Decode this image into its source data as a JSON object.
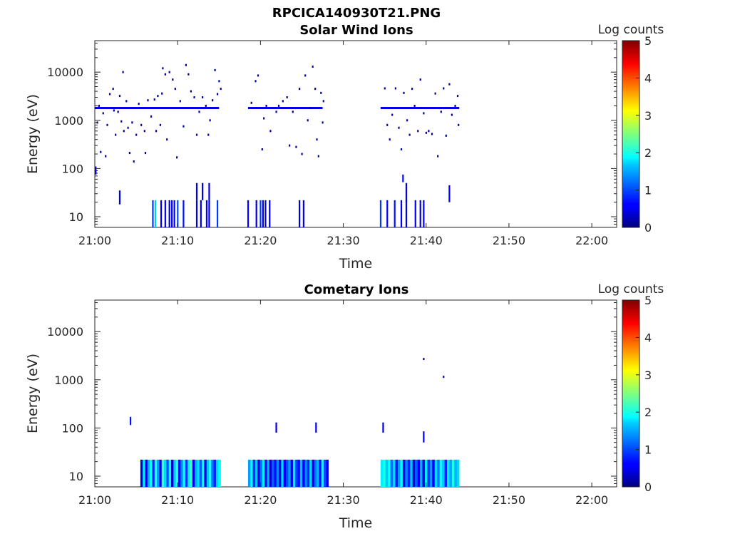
{
  "figure": {
    "title": "RPCICA140930T21.PNG"
  },
  "colorbar": {
    "label": "Log counts",
    "ticks": [
      "0",
      "1",
      "2",
      "3",
      "4",
      "5"
    ],
    "range": [
      0,
      5
    ],
    "colormap": "jet"
  },
  "chart_data": [
    {
      "type": "heatmap",
      "title": "Solar Wind Ions",
      "xlabel": "Time",
      "ylabel": "Energy (eV)",
      "x_range": [
        "21:00",
        "22:03"
      ],
      "y_scale": "log",
      "y_range": [
        6,
        45000
      ],
      "x_ticks": [
        "21:00",
        "21:10",
        "21:20",
        "21:30",
        "21:40",
        "21:50",
        "22:00"
      ],
      "y_ticks": [
        "10",
        "100",
        "1000",
        "10000"
      ],
      "colorbar_label": "Log counts",
      "color_range": [
        0,
        5
      ],
      "bars": [
        {
          "t": "21:07",
          "level": 0.9
        },
        {
          "t": "21:07.3",
          "level": 1.6
        },
        {
          "t": "21:08",
          "level": 0.5
        },
        {
          "t": "21:08.5",
          "level": 0.6
        },
        {
          "t": "21:09",
          "level": 0.4
        },
        {
          "t": "21:09.3",
          "level": 0.5
        },
        {
          "t": "21:09.6",
          "level": 0.6
        },
        {
          "t": "21:10",
          "level": 1.0
        },
        {
          "t": "21:10.7",
          "level": 0.7
        },
        {
          "t": "21:12.3",
          "level": 0.5
        },
        {
          "t": "21:12.8",
          "level": 0.4
        },
        {
          "t": "21:13.5",
          "level": 0.6
        },
        {
          "t": "21:13.8",
          "level": 0.4
        },
        {
          "t": "21:14.8",
          "level": 0.9
        },
        {
          "t": "21:18.5",
          "level": 0.6
        },
        {
          "t": "21:19.5",
          "level": 0.5
        },
        {
          "t": "21:20",
          "level": 0.9
        },
        {
          "t": "21:20.3",
          "level": 0.5
        },
        {
          "t": "21:20.6",
          "level": 0.4
        },
        {
          "t": "21:21.1",
          "level": 0.6
        },
        {
          "t": "21:24.7",
          "level": 0.5
        },
        {
          "t": "21:25.2",
          "level": 0.6
        },
        {
          "t": "21:34.5",
          "level": 0.9
        },
        {
          "t": "21:35.3",
          "level": 0.6
        },
        {
          "t": "21:36.2",
          "level": 0.7
        },
        {
          "t": "21:37",
          "level": 0.6
        },
        {
          "t": "21:37.6",
          "level": 0.5
        },
        {
          "t": "21:38.7",
          "level": 0.6
        },
        {
          "t": "21:39.3",
          "level": 0.5
        },
        {
          "t": "21:39.7",
          "level": 0.6
        }
      ],
      "short_segments": [
        {
          "t": "21:03",
          "e_low": 18,
          "e_high": 35,
          "level": 0.6
        },
        {
          "t": "21:12.3",
          "e_low": 22,
          "e_high": 50,
          "level": 0.5
        },
        {
          "t": "21:13",
          "e_low": 22,
          "e_high": 50,
          "level": 0.4
        },
        {
          "t": "21:13.8",
          "e_low": 22,
          "e_high": 50,
          "level": 0.5
        },
        {
          "t": "21:37.2",
          "e_low": 52,
          "e_high": 75,
          "level": 0.7
        },
        {
          "t": "21:37.6",
          "e_low": 20,
          "e_high": 50,
          "level": 0.5
        },
        {
          "t": "21:42.8",
          "e_low": 20,
          "e_high": 45,
          "level": 0.6
        },
        {
          "t": "21:00.1",
          "e_low": 75,
          "e_high": 110,
          "level": 0.6
        }
      ],
      "band": {
        "energy": 1800,
        "segments": [
          [
            "21:00",
            "21:15"
          ],
          [
            "21:18.5",
            "21:27.5"
          ],
          [
            "21:34.5",
            "21:44"
          ]
        ],
        "level": 0.5
      },
      "points": [
        [
          "21:00.3",
          900
        ],
        [
          "21:00.5",
          2000
        ],
        [
          "21:00.7",
          220
        ],
        [
          "21:01",
          1400
        ],
        [
          "21:01.3",
          180
        ],
        [
          "21:01.5",
          800
        ],
        [
          "21:01.8",
          3500
        ],
        [
          "21:02.2",
          4500
        ],
        [
          "21:02.3",
          1600
        ],
        [
          "21:02.5",
          500
        ],
        [
          "21:02.8",
          1500
        ],
        [
          "21:03",
          3200
        ],
        [
          "21:03.2",
          950
        ],
        [
          "21:03.4",
          10000
        ],
        [
          "21:03.5",
          600
        ],
        [
          "21:03.8",
          2500
        ],
        [
          "21:04",
          700
        ],
        [
          "21:04.2",
          210
        ],
        [
          "21:04.5",
          900
        ],
        [
          "21:04.7",
          140
        ],
        [
          "21:05",
          500
        ],
        [
          "21:05.3",
          2200
        ],
        [
          "21:05.6",
          800
        ],
        [
          "21:06",
          600
        ],
        [
          "21:06.1",
          210
        ],
        [
          "21:06.4",
          2600
        ],
        [
          "21:06.8",
          1200
        ],
        [
          "21:07.2",
          2700
        ],
        [
          "21:07.4",
          600
        ],
        [
          "21:07.6",
          3200
        ],
        [
          "21:07.9",
          800
        ],
        [
          "21:08.1",
          3600
        ],
        [
          "21:08.2",
          12000
        ],
        [
          "21:08.5",
          9000
        ],
        [
          "21:08.7",
          400
        ],
        [
          "21:09",
          10000
        ],
        [
          "21:09.4",
          7000
        ],
        [
          "21:09.7",
          4500
        ],
        [
          "21:09.9",
          170
        ],
        [
          "21:10.3",
          2500
        ],
        [
          "21:10.7",
          750
        ],
        [
          "21:11",
          14000
        ],
        [
          "21:11.3",
          9000
        ],
        [
          "21:11.6",
          4000
        ],
        [
          "21:12",
          3000
        ],
        [
          "21:12.3",
          500
        ],
        [
          "21:12.6",
          1500
        ],
        [
          "21:13",
          3000
        ],
        [
          "21:13.4",
          2000
        ],
        [
          "21:13.7",
          500
        ],
        [
          "21:13.9",
          1000
        ],
        [
          "21:14.2",
          2600
        ],
        [
          "21:14.5",
          11000
        ],
        [
          "21:14.8",
          3500
        ],
        [
          "21:15",
          6500
        ],
        [
          "21:15.2",
          4500
        ],
        [
          "21:18.9",
          2300
        ],
        [
          "21:19.4",
          6500
        ],
        [
          "21:19.7",
          8500
        ],
        [
          "21:20.2",
          250
        ],
        [
          "21:20.4",
          1100
        ],
        [
          "21:20.7",
          2000
        ],
        [
          "21:21.2",
          600
        ],
        [
          "21:21.9",
          1500
        ],
        [
          "21:22.2",
          2000
        ],
        [
          "21:22.7",
          2500
        ],
        [
          "21:23.2",
          3000
        ],
        [
          "21:23.5",
          300
        ],
        [
          "21:23.9",
          1500
        ],
        [
          "21:24.3",
          280
        ],
        [
          "21:24.7",
          4500
        ],
        [
          "21:25",
          200
        ],
        [
          "21:25.4",
          8500
        ],
        [
          "21:25.7",
          1000
        ],
        [
          "21:26",
          1800
        ],
        [
          "21:26.3",
          13000
        ],
        [
          "21:26.6",
          4500
        ],
        [
          "21:26.8",
          400
        ],
        [
          "21:27",
          180
        ],
        [
          "21:27.3",
          3700
        ],
        [
          "21:27.5",
          900
        ],
        [
          "21:27.6",
          2500
        ],
        [
          "21:35",
          4600
        ],
        [
          "21:35.3",
          800
        ],
        [
          "21:35.6",
          400
        ],
        [
          "21:35.9",
          1300
        ],
        [
          "21:36.3",
          4600
        ],
        [
          "21:36.7",
          700
        ],
        [
          "21:37",
          250
        ],
        [
          "21:37.3",
          3700
        ],
        [
          "21:37.7",
          1000
        ],
        [
          "21:38",
          500
        ],
        [
          "21:38.3",
          4500
        ],
        [
          "21:38.6",
          2000
        ],
        [
          "21:39",
          600
        ],
        [
          "21:39.3",
          7000
        ],
        [
          "21:39.7",
          1400
        ],
        [
          "21:40",
          550
        ],
        [
          "21:40.3",
          600
        ],
        [
          "21:40.7",
          520
        ],
        [
          "21:41.1",
          3600
        ],
        [
          "21:41.4",
          180
        ],
        [
          "21:41.8",
          1500
        ],
        [
          "21:42.1",
          4600
        ],
        [
          "21:42.4",
          480
        ],
        [
          "21:42.8",
          5600
        ],
        [
          "21:43.1",
          1300
        ],
        [
          "21:43.5",
          2000
        ],
        [
          "21:43.8",
          3200
        ],
        [
          "21:43.9",
          800
        ]
      ]
    },
    {
      "type": "heatmap",
      "title": "Cometary Ions",
      "xlabel": "Time",
      "ylabel": "Energy (eV)",
      "x_range": [
        "21:00",
        "22:03"
      ],
      "y_scale": "log",
      "y_range": [
        6,
        45000
      ],
      "x_ticks": [
        "21:00",
        "21:10",
        "21:20",
        "21:30",
        "21:40",
        "21:50",
        "22:00"
      ],
      "y_ticks": [
        "10",
        "100",
        "1000",
        "10000"
      ],
      "colorbar_label": "Log counts",
      "color_range": [
        0,
        5
      ],
      "fill_top_energy": 22,
      "columns": [
        {
          "start": "21:05.5",
          "end": "21:15.2",
          "levels": [
            0.4,
            1.8,
            0.6,
            1.5,
            1.9,
            0.8,
            2.0,
            1.4,
            0.5,
            2.2,
            1.7,
            1.0,
            1.9,
            0.4,
            1.6,
            2.1,
            0.7,
            1.3,
            1.9,
            0.9,
            1.8,
            2.2,
            0.6,
            1.5,
            1.7,
            1.1,
            1.9,
            0.5,
            1.6,
            2.0,
            1.2,
            0.8,
            1.7,
            1.9
          ]
        },
        {
          "start": "21:18.5",
          "end": "21:28.2",
          "levels": [
            1.4,
            1.9,
            0.8,
            1.6,
            0.5,
            1.2,
            1.8,
            0.6,
            1.5,
            0.4,
            1.1,
            0.7,
            1.3,
            0.5,
            1.7,
            0.6,
            1.0,
            1.4,
            0.5,
            1.8,
            0.9,
            0.7,
            1.6,
            0.6,
            1.3,
            0.8,
            1.7,
            0.5,
            1.2,
            1.5,
            0.7,
            1.9,
            1.0,
            0.6
          ]
        },
        {
          "start": "21:34.5",
          "end": "21:44",
          "levels": [
            1.8,
            2.0,
            1.6,
            1.9,
            1.2,
            1.7,
            0.7,
            1.4,
            1.9,
            0.5,
            1.3,
            0.8,
            1.6,
            0.4,
            1.1,
            0.6,
            1.5,
            0.5,
            1.8,
            0.9,
            1.4,
            0.6,
            1.7,
            1.2,
            1.9,
            1.6,
            0.8,
            1.8,
            1.4,
            2.0,
            1.5,
            1.7
          ]
        }
      ],
      "short_segments": [
        {
          "t": "21:04.3",
          "e_low": 115,
          "e_high": 170,
          "level": 0.7
        },
        {
          "t": "21:21.9",
          "e_low": 80,
          "e_high": 130,
          "level": 0.5
        },
        {
          "t": "21:26.7",
          "e_low": 80,
          "e_high": 130,
          "level": 0.6
        },
        {
          "t": "21:34.8",
          "e_low": 80,
          "e_high": 130,
          "level": 0.5
        },
        {
          "t": "21:39.7",
          "e_low": 50,
          "e_high": 85,
          "level": 0.6
        }
      ],
      "points": [
        [
          "21:39.7",
          2700
        ],
        [
          "21:42.1",
          1150
        ]
      ]
    }
  ]
}
